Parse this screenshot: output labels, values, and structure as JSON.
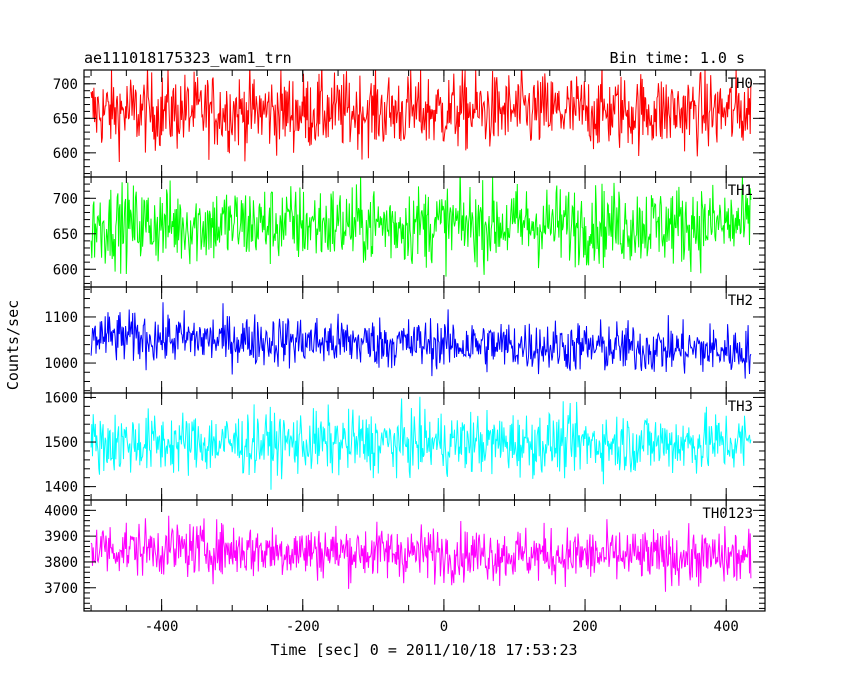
{
  "header": {
    "left_title": "ae111018175323_wam1_trn",
    "right_title": "Bin time: 1.0 s"
  },
  "chart_data": {
    "type": "line",
    "title": "ae111018175323_wam1_trn",
    "subtitle": "Bin time: 1.0 s",
    "xlabel": "Time [sec] 0 = 2011/10/18 17:53:23",
    "ylabel": "Counts/sec",
    "xlim": [
      -510,
      455
    ],
    "x_range": [
      -500,
      435
    ],
    "x_ticks": [
      -400,
      -200,
      0,
      200,
      400
    ],
    "grid": false,
    "panels": [
      {
        "name": "TH0",
        "color": "#ff0000",
        "ylim": [
          565,
          720
        ],
        "y_ticks": [
          600,
          650,
          700
        ],
        "mean": 660,
        "amplitude": 40,
        "trend": 0
      },
      {
        "name": "TH1",
        "color": "#00ff00",
        "ylim": [
          575,
          730
        ],
        "y_ticks": [
          600,
          650,
          700
        ],
        "mean": 663,
        "amplitude": 40,
        "trend": 0
      },
      {
        "name": "TH2",
        "color": "#0000ff",
        "ylim": [
          935,
          1165
        ],
        "y_ticks": [
          1000,
          1100
        ],
        "mean": 1042,
        "amplitude": 40,
        "trend": -15
      },
      {
        "name": "TH3",
        "color": "#00ffff",
        "ylim": [
          1370,
          1610
        ],
        "y_ticks": [
          1400,
          1500,
          1600
        ],
        "mean": 1498,
        "amplitude": 50,
        "trend": 0
      },
      {
        "name": "TH0123",
        "color": "#ff00ff",
        "ylim": [
          3610,
          4040
        ],
        "y_ticks": [
          3700,
          3800,
          3900,
          4000
        ],
        "mean": 3835,
        "amplitude": 75,
        "trend": -20
      }
    ]
  }
}
